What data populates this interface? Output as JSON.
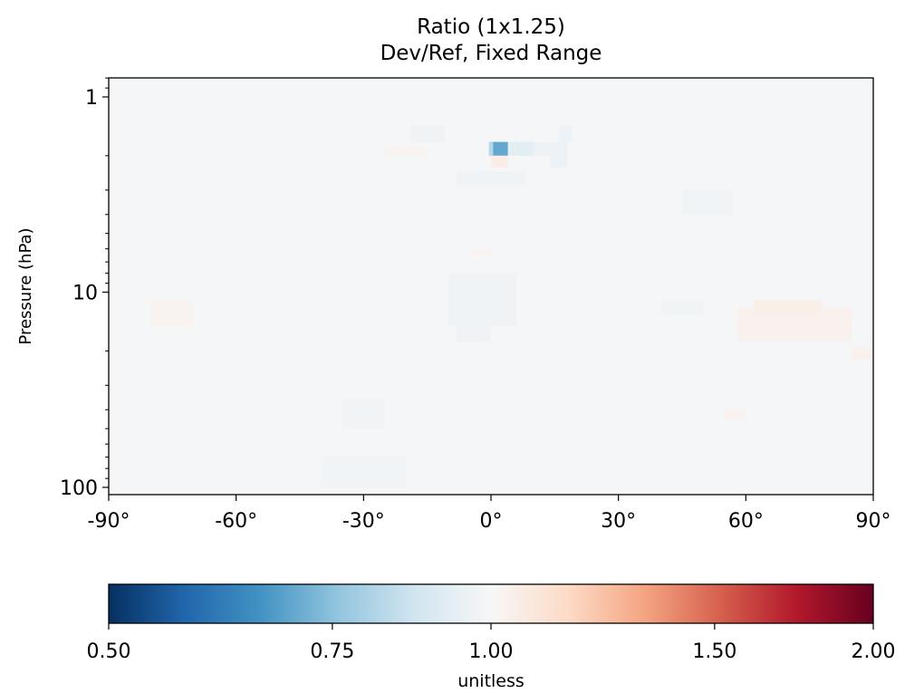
{
  "chart_data": {
    "type": "heatmap",
    "title": "Ratio (1x1.25)",
    "subtitle": "Dev/Ref, Fixed Range",
    "ylabel": "Pressure (hPa)",
    "xlabel": "",
    "colorbar_label": "unitless",
    "colormap": "RdBu_r (diverging blue-white-red)",
    "colormap_colors": [
      "#053061",
      "#2166ac",
      "#4393c3",
      "#92c5de",
      "#d1e5f0",
      "#f7f7f7",
      "#fddbc7",
      "#f4a582",
      "#d6604d",
      "#b2182b",
      "#67001f"
    ],
    "x_axis": {
      "range": [
        -90,
        90
      ],
      "ticks": [
        -90,
        -60,
        -30,
        0,
        30,
        60,
        90
      ],
      "tick_labels": [
        "-90°",
        "-60°",
        "-30°",
        "0°",
        "30°",
        "60°",
        "90°"
      ]
    },
    "y_axis": {
      "scale": "log",
      "inverted": true,
      "range": [
        1,
        100
      ],
      "ticks": [
        1,
        10,
        100
      ],
      "tick_labels": [
        "1",
        "10",
        "100"
      ]
    },
    "colorbar": {
      "range": [
        0.5,
        2.0
      ],
      "scale": "log-like",
      "ticks": [
        0.5,
        0.75,
        1.0,
        1.5,
        2.0
      ],
      "tick_labels": [
        "0.50",
        "0.75",
        "1.00",
        "1.50",
        "2.00"
      ]
    },
    "background_value": 1.0,
    "cells": [
      {
        "lat": [
          0,
          4
        ],
        "p": [
          1.7,
          2.0
        ],
        "value": 0.7
      },
      {
        "lat": [
          -0.5,
          0.5
        ],
        "p": [
          1.7,
          2.0
        ],
        "value": 0.82
      },
      {
        "lat": [
          4,
          10
        ],
        "p": [
          1.7,
          2.0
        ],
        "value": 0.93
      },
      {
        "lat": [
          10,
          18
        ],
        "p": [
          1.7,
          2.0
        ],
        "value": 0.96
      },
      {
        "lat": [
          0,
          4
        ],
        "p": [
          2.0,
          2.3
        ],
        "value": 1.05
      },
      {
        "lat": [
          14,
          18
        ],
        "p": [
          2.0,
          2.3
        ],
        "value": 0.96
      },
      {
        "lat": [
          16,
          19
        ],
        "p": [
          1.4,
          1.7
        ],
        "value": 0.96
      },
      {
        "lat": [
          -19,
          -11
        ],
        "p": [
          1.4,
          1.7
        ],
        "value": 0.97
      },
      {
        "lat": [
          -8,
          8
        ],
        "p": [
          2.4,
          2.8
        ],
        "value": 0.97
      },
      {
        "lat": [
          -10,
          6
        ],
        "p": [
          8.0,
          15.0
        ],
        "value": 0.97
      },
      {
        "lat": [
          -8,
          0
        ],
        "p": [
          15.0,
          18.0
        ],
        "value": 0.97
      },
      {
        "lat": [
          58,
          85
        ],
        "p": [
          12.0,
          18.0
        ],
        "value": 1.03
      },
      {
        "lat": [
          62,
          78
        ],
        "p": [
          11.0,
          13.0
        ],
        "value": 1.04
      },
      {
        "lat": [
          85,
          90
        ],
        "p": [
          19.0,
          22.0
        ],
        "value": 1.03
      },
      {
        "lat": [
          -25,
          -15
        ],
        "p": [
          1.8,
          2.0
        ],
        "value": 1.02
      },
      {
        "lat": [
          -5,
          0
        ],
        "p": [
          6.0,
          6.5
        ],
        "value": 1.02
      },
      {
        "lat": [
          40,
          50
        ],
        "p": [
          11.0,
          13.0
        ],
        "value": 0.98
      },
      {
        "lat": [
          45,
          57
        ],
        "p": [
          3.0,
          4.0
        ],
        "value": 0.98
      },
      {
        "lat": [
          -80,
          -70
        ],
        "p": [
          11.0,
          15.0
        ],
        "value": 1.02
      },
      {
        "lat": [
          -35,
          -25
        ],
        "p": [
          35.0,
          50.0
        ],
        "value": 0.98
      },
      {
        "lat": [
          -40,
          -20
        ],
        "p": [
          70.0,
          100.0
        ],
        "value": 0.98
      },
      {
        "lat": [
          55,
          60
        ],
        "p": [
          40.0,
          45.0
        ],
        "value": 1.02
      }
    ]
  }
}
